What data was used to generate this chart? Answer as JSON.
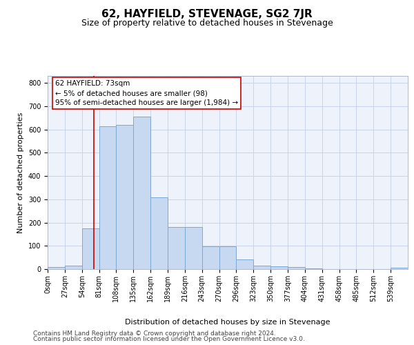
{
  "title": "62, HAYFIELD, STEVENAGE, SG2 7JR",
  "subtitle": "Size of property relative to detached houses in Stevenage",
  "xlabel": "Distribution of detached houses by size in Stevenage",
  "ylabel": "Number of detached properties",
  "bar_labels": [
    "0sqm",
    "27sqm",
    "54sqm",
    "81sqm",
    "108sqm",
    "135sqm",
    "162sqm",
    "189sqm",
    "216sqm",
    "243sqm",
    "270sqm",
    "296sqm",
    "323sqm",
    "350sqm",
    "377sqm",
    "404sqm",
    "431sqm",
    "458sqm",
    "485sqm",
    "512sqm",
    "539sqm"
  ],
  "bar_values": [
    8,
    15,
    175,
    615,
    620,
    655,
    308,
    180,
    180,
    97,
    97,
    42,
    15,
    12,
    10,
    3,
    0,
    0,
    0,
    0,
    5
  ],
  "bar_color": "#c6d9f0",
  "bar_edge_color": "#7da8d4",
  "vline_x": 2,
  "vline_color": "#cc0000",
  "annotation_text": "62 HAYFIELD: 73sqm\n← 5% of detached houses are smaller (98)\n95% of semi-detached houses are larger (1,984) →",
  "annotation_box_color": "#ffffff",
  "annotation_box_edge": "#cc0000",
  "ylim": [
    0,
    830
  ],
  "yticks": [
    0,
    100,
    200,
    300,
    400,
    500,
    600,
    700,
    800
  ],
  "grid_color": "#c8d4e8",
  "background_color": "#eef2fa",
  "footer_line1": "Contains HM Land Registry data © Crown copyright and database right 2024.",
  "footer_line2": "Contains public sector information licensed under the Open Government Licence v3.0.",
  "title_fontsize": 11,
  "subtitle_fontsize": 9,
  "axis_label_fontsize": 8,
  "tick_fontsize": 7,
  "annotation_fontsize": 7.5,
  "footer_fontsize": 6.5
}
